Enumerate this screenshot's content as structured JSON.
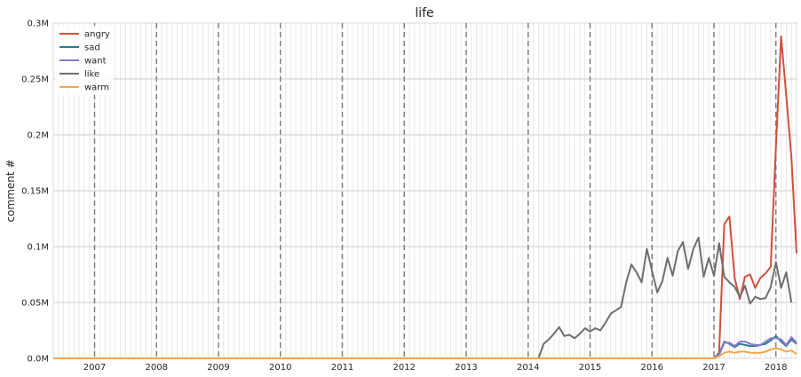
{
  "chart_data": {
    "type": "line",
    "title": "life",
    "xlabel": "",
    "ylabel": "comment #",
    "x_start": "2006-05",
    "x_end": "2018-05",
    "ylim": [
      0,
      0.3
    ],
    "y_unit": "M",
    "x_ticks": [
      "2007",
      "2008",
      "2009",
      "2010",
      "2011",
      "2012",
      "2013",
      "2014",
      "2015",
      "2016",
      "2017",
      "2018"
    ],
    "y_ticks": [
      "0.0M",
      "0.05M",
      "0.1M",
      "0.15M",
      "0.2M",
      "0.25M",
      "0.3M"
    ],
    "year_dashed_lines": true,
    "grid": true,
    "legend_position": "top-left",
    "series": [
      {
        "name": "angry",
        "color": "#d1503a",
        "points": [
          [
            "2017-01",
            0.0
          ],
          [
            "2017-02",
            0.005
          ],
          [
            "2017-03",
            0.12
          ],
          [
            "2017-04",
            0.127
          ],
          [
            "2017-05",
            0.072
          ],
          [
            "2017-06",
            0.053
          ],
          [
            "2017-07",
            0.073
          ],
          [
            "2017-08",
            0.075
          ],
          [
            "2017-09",
            0.063
          ],
          [
            "2017-10",
            0.072
          ],
          [
            "2017-11",
            0.076
          ],
          [
            "2017-12",
            0.082
          ],
          [
            "2018-01",
            0.19
          ],
          [
            "2018-02",
            0.288
          ],
          [
            "2018-03",
            0.235
          ],
          [
            "2018-04",
            0.18
          ],
          [
            "2018-05",
            0.094
          ]
        ]
      },
      {
        "name": "sad",
        "color": "#2a7f8e",
        "points": [
          [
            "2017-01",
            0.0
          ],
          [
            "2017-02",
            0.004
          ],
          [
            "2017-03",
            0.015
          ],
          [
            "2017-04",
            0.013
          ],
          [
            "2017-05",
            0.01
          ],
          [
            "2017-06",
            0.013
          ],
          [
            "2017-07",
            0.012
          ],
          [
            "2017-08",
            0.011
          ],
          [
            "2017-09",
            0.011
          ],
          [
            "2017-10",
            0.012
          ],
          [
            "2017-11",
            0.013
          ],
          [
            "2017-12",
            0.016
          ],
          [
            "2018-01",
            0.02
          ],
          [
            "2018-02",
            0.015
          ],
          [
            "2018-03",
            0.011
          ],
          [
            "2018-04",
            0.017
          ],
          [
            "2018-05",
            0.013
          ]
        ]
      },
      {
        "name": "want",
        "color": "#8c7ad1",
        "points": [
          [
            "2017-01",
            0.0
          ],
          [
            "2017-02",
            0.003
          ],
          [
            "2017-03",
            0.014
          ],
          [
            "2017-04",
            0.014
          ],
          [
            "2017-05",
            0.011
          ],
          [
            "2017-06",
            0.015
          ],
          [
            "2017-07",
            0.015
          ],
          [
            "2017-08",
            0.013
          ],
          [
            "2017-09",
            0.012
          ],
          [
            "2017-10",
            0.012
          ],
          [
            "2017-11",
            0.015
          ],
          [
            "2017-12",
            0.018
          ],
          [
            "2018-01",
            0.018
          ],
          [
            "2018-02",
            0.017
          ],
          [
            "2018-03",
            0.012
          ],
          [
            "2018-04",
            0.019
          ],
          [
            "2018-05",
            0.014
          ]
        ]
      },
      {
        "name": "like",
        "color": "#6e6e6e",
        "points": [
          [
            "2006-05",
            0.0
          ],
          [
            "2014-03",
            0.0
          ],
          [
            "2014-04",
            0.013
          ],
          [
            "2014-05",
            0.017
          ],
          [
            "2014-06",
            0.022
          ],
          [
            "2014-07",
            0.028
          ],
          [
            "2014-08",
            0.02
          ],
          [
            "2014-09",
            0.021
          ],
          [
            "2014-10",
            0.018
          ],
          [
            "2014-11",
            0.022
          ],
          [
            "2014-12",
            0.027
          ],
          [
            "2015-01",
            0.024
          ],
          [
            "2015-02",
            0.027
          ],
          [
            "2015-03",
            0.025
          ],
          [
            "2015-04",
            0.032
          ],
          [
            "2015-05",
            0.04
          ],
          [
            "2015-06",
            0.043
          ],
          [
            "2015-07",
            0.046
          ],
          [
            "2015-08",
            0.068
          ],
          [
            "2015-09",
            0.084
          ],
          [
            "2015-10",
            0.077
          ],
          [
            "2015-11",
            0.068
          ],
          [
            "2015-12",
            0.098
          ],
          [
            "2016-01",
            0.078
          ],
          [
            "2016-02",
            0.059
          ],
          [
            "2016-03",
            0.069
          ],
          [
            "2016-04",
            0.09
          ],
          [
            "2016-05",
            0.074
          ],
          [
            "2016-06",
            0.096
          ],
          [
            "2016-07",
            0.104
          ],
          [
            "2016-08",
            0.08
          ],
          [
            "2016-09",
            0.098
          ],
          [
            "2016-10",
            0.108
          ],
          [
            "2016-11",
            0.073
          ],
          [
            "2016-12",
            0.09
          ],
          [
            "2017-01",
            0.074
          ],
          [
            "2017-02",
            0.103
          ],
          [
            "2017-03",
            0.073
          ],
          [
            "2017-04",
            0.068
          ],
          [
            "2017-05",
            0.064
          ],
          [
            "2017-06",
            0.055
          ],
          [
            "2017-07",
            0.065
          ],
          [
            "2017-08",
            0.049
          ],
          [
            "2017-09",
            0.055
          ],
          [
            "2017-10",
            0.053
          ],
          [
            "2017-11",
            0.054
          ],
          [
            "2017-12",
            0.064
          ],
          [
            "2018-01",
            0.086
          ],
          [
            "2018-02",
            0.063
          ],
          [
            "2018-03",
            0.077
          ],
          [
            "2018-04",
            0.05
          ]
        ]
      },
      {
        "name": "warm",
        "color": "#f0a848",
        "points": [
          [
            "2006-05",
            0.0
          ],
          [
            "2017-01",
            0.0
          ],
          [
            "2017-02",
            0.002
          ],
          [
            "2017-03",
            0.005
          ],
          [
            "2017-04",
            0.006
          ],
          [
            "2017-05",
            0.005
          ],
          [
            "2017-06",
            0.006
          ],
          [
            "2017-07",
            0.006
          ],
          [
            "2017-08",
            0.005
          ],
          [
            "2017-09",
            0.005
          ],
          [
            "2017-10",
            0.005
          ],
          [
            "2017-11",
            0.006
          ],
          [
            "2017-12",
            0.008
          ],
          [
            "2018-01",
            0.009
          ],
          [
            "2018-02",
            0.008
          ],
          [
            "2018-03",
            0.006
          ],
          [
            "2018-04",
            0.007
          ],
          [
            "2018-05",
            0.004
          ]
        ]
      }
    ]
  }
}
